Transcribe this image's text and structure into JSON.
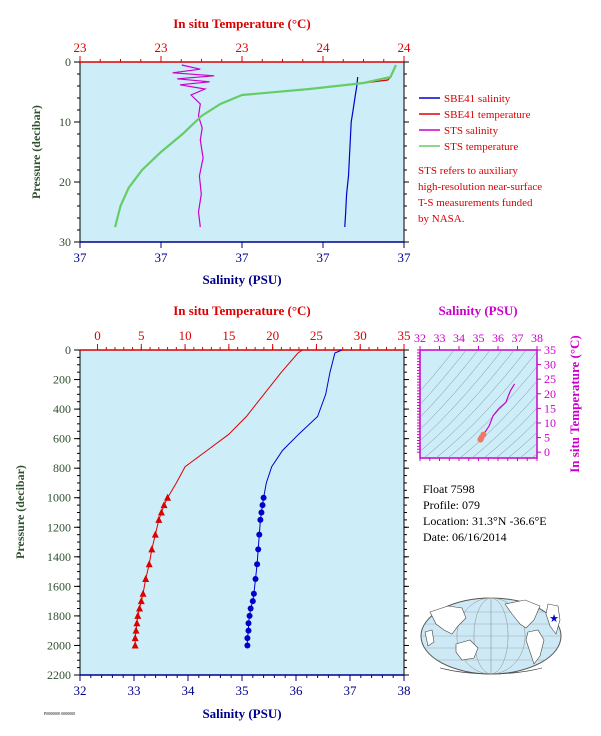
{
  "chart_data": [
    {
      "type": "line",
      "panel": "top",
      "title": "",
      "top_axis": {
        "label": "In situ Temperature (°C)",
        "ticks": [
          "23",
          "23",
          "23",
          "24",
          "24"
        ],
        "range": [
          22.8,
          24.0
        ]
      },
      "bottom_axis": {
        "label": "Salinity (PSU)",
        "ticks": [
          "37",
          "37",
          "37",
          "37",
          "37"
        ],
        "range": [
          36.9,
          37.25
        ]
      },
      "left_axis": {
        "label": "Pressure (decibar)",
        "ticks": [
          "0",
          "10",
          "20",
          "30"
        ],
        "range": [
          0,
          30
        ]
      },
      "series": [
        {
          "name": "SBE41 salinity",
          "axis": "salinity",
          "color": "#0000cd",
          "x": [
            37.2,
            37.199,
            37.197,
            37.195,
            37.193,
            37.192,
            37.191,
            37.19,
            37.188,
            37.187,
            37.186
          ],
          "y": [
            2.5,
            4,
            6,
            8,
            10,
            13,
            16,
            19,
            22,
            25,
            27.5
          ]
        },
        {
          "name": "SBE41 temperature",
          "axis": "temperature",
          "color": "#dd0000",
          "x": [
            23.95,
            23.94,
            23.85,
            23.65,
            23.4,
            23.32,
            23.25,
            23.18,
            23.1,
            23.03,
            22.98,
            22.95,
            22.93
          ],
          "y": [
            2.5,
            3,
            3.5,
            4.5,
            5.5,
            7,
            9,
            12,
            15,
            18,
            21,
            24,
            27.5
          ]
        },
        {
          "name": "STS salinity",
          "axis": "salinity",
          "color": "#cc00cc",
          "x": [
            37.01,
            37.03,
            37.0,
            37.045,
            37.005,
            37.04,
            37.008,
            37.035,
            37.02,
            37.03,
            37.028,
            37.032,
            37.03,
            37.033,
            37.029,
            37.031,
            37.028,
            37.03
          ],
          "y": [
            0.5,
            1.2,
            1.8,
            2.3,
            2.8,
            3.3,
            3.8,
            4.5,
            5.5,
            7,
            9,
            11,
            13,
            16,
            19,
            22,
            25,
            27.5
          ]
        },
        {
          "name": "STS temperature",
          "axis": "temperature",
          "color": "#66cc66",
          "x": [
            23.97,
            23.96,
            23.95,
            23.85,
            23.65,
            23.4,
            23.32,
            23.25,
            23.18,
            23.1,
            23.03,
            22.98,
            22.95,
            22.93
          ],
          "y": [
            0.5,
            1.5,
            2.5,
            3.5,
            4.5,
            5.5,
            7,
            9,
            12,
            15,
            18,
            21,
            24,
            27.5
          ]
        }
      ],
      "legend_placement": "right",
      "note": "STS refers to auxiliary high-resolution near-surface T-S measurements funded by NASA."
    },
    {
      "type": "line",
      "panel": "bottom",
      "title": "",
      "top_axis": {
        "label": "In situ Temperature (°C)",
        "ticks": [
          "0",
          "5",
          "10",
          "15",
          "20",
          "25",
          "30",
          "35"
        ],
        "range": [
          -2,
          35
        ]
      },
      "bottom_axis": {
        "label": "Salinity (PSU)",
        "ticks": [
          "32",
          "33",
          "34",
          "35",
          "36",
          "37",
          "38"
        ],
        "range": [
          32,
          38
        ]
      },
      "left_axis": {
        "label": "Pressure (decibar)",
        "ticks": [
          "0",
          "200",
          "400",
          "600",
          "800",
          "1000",
          "1200",
          "1400",
          "1600",
          "1800",
          "2000",
          "2200"
        ],
        "range": [
          0,
          2200
        ]
      },
      "series": [
        {
          "name": "Temperature",
          "axis": "temperature",
          "color": "#dd0000",
          "marker": "triangle",
          "x": [
            23.4,
            22.9,
            21.0,
            19.0,
            17.0,
            15.0,
            12.5,
            10.0,
            9.0,
            8.0,
            7.6,
            7.3,
            7.0,
            6.6,
            6.2,
            5.9,
            5.5,
            5.2,
            5.0,
            4.8,
            4.6,
            4.5,
            4.4,
            4.3,
            4.3
          ],
          "y": [
            0,
            20,
            150,
            300,
            450,
            570,
            680,
            790,
            900,
            1000,
            1050,
            1100,
            1150,
            1250,
            1350,
            1450,
            1550,
            1650,
            1700,
            1750,
            1800,
            1850,
            1900,
            1950,
            2000
          ]
        },
        {
          "name": "Salinity",
          "axis": "salinity",
          "color": "#0000cd",
          "marker": "circle",
          "x": [
            36.85,
            36.72,
            36.63,
            36.55,
            36.4,
            36.05,
            35.75,
            35.55,
            35.45,
            35.4,
            35.38,
            35.36,
            35.34,
            35.32,
            35.3,
            35.28,
            35.25,
            35.22,
            35.2,
            35.16,
            35.14,
            35.12,
            35.12,
            35.1,
            35.1
          ],
          "y": [
            0,
            20,
            150,
            300,
            450,
            570,
            680,
            790,
            900,
            1000,
            1050,
            1100,
            1150,
            1250,
            1350,
            1450,
            1550,
            1650,
            1700,
            1750,
            1800,
            1850,
            1900,
            1950,
            2000
          ]
        }
      ]
    },
    {
      "type": "scatter",
      "panel": "inset-ts",
      "top_axis": {
        "label": "Salinity (PSU)",
        "ticks": [
          "32",
          "33",
          "34",
          "35",
          "36",
          "37",
          "38"
        ],
        "range": [
          32,
          38
        ]
      },
      "right_axis": {
        "label": "In situ Temperature (°C)",
        "ticks": [
          "0",
          "5",
          "10",
          "15",
          "20",
          "25",
          "30",
          "35"
        ],
        "range": [
          -2,
          35
        ]
      },
      "series": [
        {
          "name": "T-S",
          "color": "#cc00cc",
          "x": [
            35.1,
            35.15,
            35.25,
            35.35,
            35.55,
            35.75,
            36.05,
            36.4,
            36.63,
            36.85
          ],
          "y": [
            4.3,
            5.0,
            6.0,
            7.0,
            9.0,
            12.5,
            15.0,
            17.0,
            21.0,
            23.4
          ]
        }
      ]
    }
  ],
  "legend": [
    {
      "label": "SBE41 salinity",
      "color": "#0000cd"
    },
    {
      "label": "SBE41 temperature",
      "color": "#dd0000"
    },
    {
      "label": "STS salinity",
      "color": "#cc00cc"
    },
    {
      "label": "STS temperature",
      "color": "#66cc66"
    }
  ],
  "note_lines": [
    "STS refers to auxiliary",
    "high-resolution near-surface",
    "T-S measurements funded",
    "by NASA."
  ],
  "info": {
    "float": "Float  7598",
    "profile": "Profile:  079",
    "location": "Location:  31.3°N  -36.6°E",
    "date": "Date:  06/16/2014"
  },
  "footer": "P0000000 0000000",
  "map": {
    "marker_color": "#0000cd",
    "land_color": "#ffffff",
    "ocean_color": "#cde9f5",
    "marker_lat": 31.3,
    "marker_lon": -36.6
  }
}
